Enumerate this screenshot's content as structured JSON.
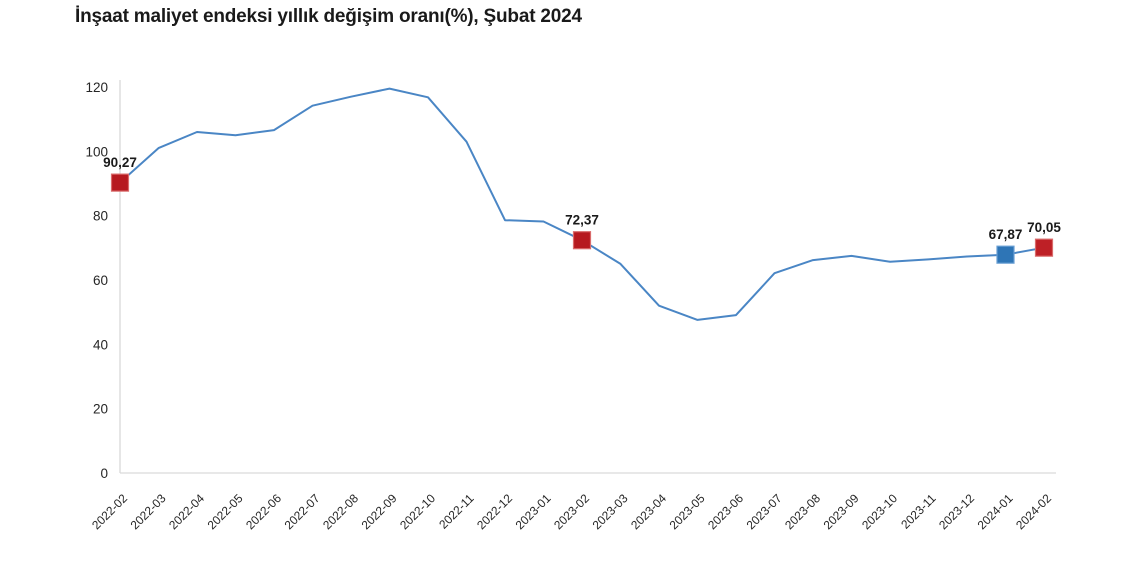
{
  "page": {
    "background_color": "#ffffff"
  },
  "chart_data": {
    "type": "line",
    "title": "İnşaat maliyet endeksi yıllık değişim oranı(%), Şubat 2024",
    "xlabel": "",
    "ylabel": "",
    "categories": [
      "2022-02",
      "2022-03",
      "2022-04",
      "2022-05",
      "2022-06",
      "2022-07",
      "2022-08",
      "2022-09",
      "2022-10",
      "2022-11",
      "2022-12",
      "2023-01",
      "2023-02",
      "2023-03",
      "2023-04",
      "2023-05",
      "2023-06",
      "2023-07",
      "2023-08",
      "2023-09",
      "2023-10",
      "2023-11",
      "2023-12",
      "2024-01",
      "2024-02"
    ],
    "values": [
      90.27,
      101.0,
      106.0,
      105.0,
      106.6,
      114.2,
      117.0,
      119.5,
      116.8,
      103.0,
      78.6,
      78.2,
      72.37,
      65.0,
      52.0,
      47.6,
      49.1,
      62.1,
      66.2,
      67.5,
      65.7,
      66.4,
      67.3,
      67.87,
      70.05
    ],
    "ylim": [
      0,
      120
    ],
    "y_ticks": [
      0,
      20,
      40,
      60,
      80,
      100,
      120
    ],
    "grid": false,
    "legend_position": "none",
    "line_color": "#4a86c5",
    "axis_color": "#d9d9d9",
    "tick_text_color": "#262626",
    "label_text_color": "#1a1a1a",
    "highlighted_points": [
      {
        "category": "2022-02",
        "index": 0,
        "value": 90.27,
        "label": "90,27",
        "marker_color": "#b6191f",
        "marker_border": "#d96a6a"
      },
      {
        "category": "2023-02",
        "index": 12,
        "value": 72.37,
        "label": "72,37",
        "marker_color": "#b6191f",
        "marker_border": "#d96a6a"
      },
      {
        "category": "2024-01",
        "index": 23,
        "value": 67.87,
        "label": "67,87",
        "marker_color": "#2e75b6",
        "marker_border": "#6aa0d4"
      },
      {
        "category": "2024-02",
        "index": 24,
        "value": 70.05,
        "label": "70,05",
        "marker_color": "#be2026",
        "marker_border": "#d96a6a"
      }
    ]
  }
}
